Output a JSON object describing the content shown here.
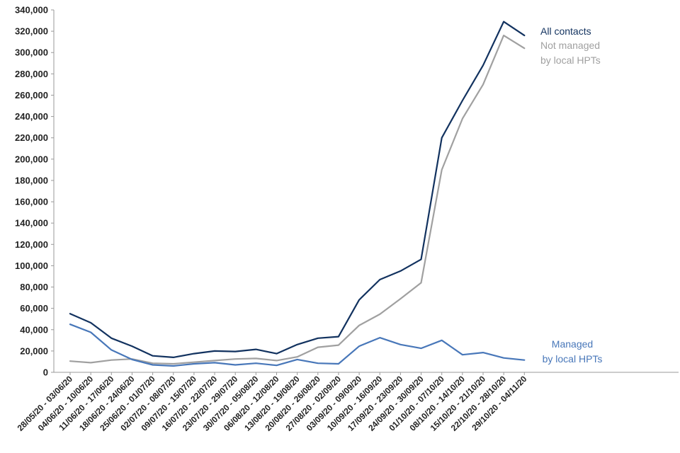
{
  "chart_data": {
    "type": "line",
    "title": "",
    "xlabel": "",
    "ylabel": "",
    "ylim": [
      0,
      340000
    ],
    "y_ticks": [
      "0",
      "20,000",
      "40,000",
      "60,000",
      "80,000",
      "100,000",
      "120,000",
      "140,000",
      "160,000",
      "180,000",
      "200,000",
      "220,000",
      "240,000",
      "260,000",
      "280,000",
      "300,000",
      "320,000",
      "340,000"
    ],
    "y_tick_values": [
      0,
      20000,
      40000,
      60000,
      80000,
      100000,
      120000,
      140000,
      160000,
      180000,
      200000,
      220000,
      240000,
      260000,
      280000,
      300000,
      320000,
      340000
    ],
    "grid": false,
    "categories": [
      "28/05/20 - 03/06/20",
      "04/06/20 - 10/06/20",
      "11/06/20 - 17/06/20",
      "18/06/20 - 24/06/20",
      "25/06/20 - 01/07/20",
      "02/07/20 - 08/07/20",
      "09/07/20 - 15/07/20",
      "16/07/20 - 22/07/20",
      "23/07/20 - 29/07/20",
      "30/07/20 - 05/08/20",
      "06/08/20 - 12/08/20",
      "13/08/20 - 19/08/20",
      "20/08/20 - 26/08/20",
      "27/08/20 - 02/09/20",
      "03/09/20 - 09/09/20",
      "10/09/20 - 16/09/20",
      "17/09/20 - 23/09/20",
      "24/09/20 - 30/09/20",
      "01/10/20 - 07/10/20",
      "08/10/20 - 14/10/20",
      "15/10/20 - 21/10/20",
      "22/10/20 - 28/10/20",
      "29/10/20 - 04/11/20"
    ],
    "series": [
      {
        "name": "All contacts",
        "label_lines": [
          "All contacts"
        ],
        "color": "#12325f",
        "values": [
          55000,
          46500,
          32000,
          24500,
          15500,
          14000,
          17500,
          20000,
          19500,
          21500,
          17500,
          26000,
          32000,
          33500,
          68000,
          87000,
          95000,
          106000,
          220000,
          255000,
          288000,
          329000,
          316000
        ]
      },
      {
        "name": "Not managed by local HPTs",
        "label_lines": [
          "Not managed",
          "by local HPTs"
        ],
        "color": "#a0a0a0",
        "values": [
          10500,
          9000,
          11500,
          12500,
          8500,
          8000,
          9500,
          11000,
          12500,
          13000,
          11000,
          14500,
          23500,
          25500,
          44000,
          54500,
          69000,
          84000,
          190000,
          238000,
          270000,
          316000,
          304000
        ]
      },
      {
        "name": "Managed by local HPTs",
        "label_lines": [
          "Managed",
          "by local HPTs"
        ],
        "color": "#4877b9",
        "values": [
          45000,
          37500,
          21000,
          12000,
          7000,
          6000,
          8000,
          9000,
          7000,
          8500,
          6500,
          12000,
          8500,
          8000,
          24500,
          32500,
          26000,
          22500,
          30000,
          16500,
          18500,
          13500,
          11500
        ]
      }
    ]
  }
}
